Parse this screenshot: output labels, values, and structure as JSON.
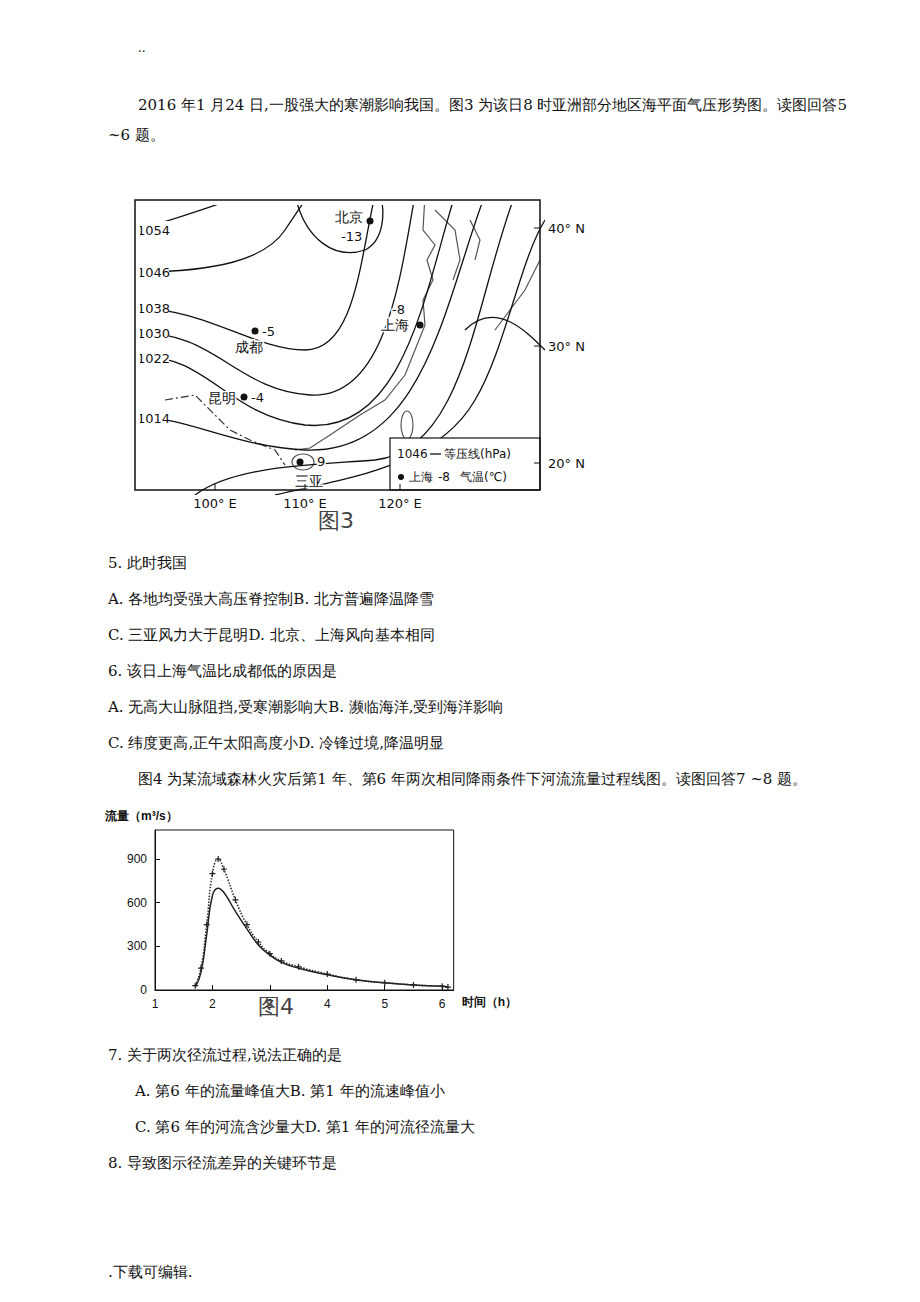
{
  "header": "..",
  "intro1": "2016 年1 月24 日,一股强大的寒潮影响我国。图3 为该日8 时亚洲部分地区海平面气压形势图。读图回答5 ~6 题。",
  "figure3": {
    "isobar_labels": [
      "1054",
      "1046",
      "1038",
      "1030",
      "1022",
      "1014"
    ],
    "cities": [
      {
        "name": "北京",
        "temp": "-13"
      },
      {
        "name": "上海",
        "temp": "-8"
      },
      {
        "name": "成都",
        "temp": "-5"
      },
      {
        "name": "昆明",
        "temp": "-4"
      },
      {
        "name": "三亚",
        "temp": "9"
      }
    ],
    "lat_labels": [
      "40° N",
      "30° N",
      "20° N"
    ],
    "lon_labels": [
      "100° E",
      "110° E",
      "120° E"
    ],
    "legend": {
      "isobar_sample": "1046",
      "isobar_text": "等压线(hPa)",
      "city_sample": "上海",
      "temp_sample": "-8",
      "temp_text": "气温(℃)"
    },
    "caption": "图3"
  },
  "questions_a": [
    {
      "stem": "5. 此时我国",
      "options": [
        "A. 各地均受强大高压脊控制B. 北方普遍降温降雪",
        "C. 三亚风力大于昆明D. 北京、上海风向基本相同"
      ]
    },
    {
      "stem": "6. 该日上海气温比成都低的原因是",
      "options": [
        "A. 无高大山脉阻挡,受寒潮影响大B. 濒临海洋,受到海洋影响",
        "C. 纬度更高,正午太阳高度小D. 冷锋过境,降温明显"
      ]
    }
  ],
  "intro2": "图4 为某流域森林火灾后第1 年、第6 年两次相同降雨条件下河流流量过程线图。读图回答7 ~8 题。",
  "chart_data": {
    "type": "line",
    "caption": "图4",
    "y_label": "流量（m³/s）",
    "x_label": "时间（h）",
    "x": [
      1.7,
      1.8,
      1.9,
      2.0,
      2.1,
      2.2,
      2.4,
      2.6,
      2.8,
      3.0,
      3.2,
      3.5,
      4.0,
      4.5,
      5.0,
      5.5,
      6.0,
      6.1
    ],
    "series": [
      {
        "color": "#222222",
        "marker": "cross",
        "line_style": "dotted",
        "values": [
          30,
          150,
          450,
          800,
          900,
          830,
          620,
          450,
          330,
          250,
          200,
          160,
          110,
          70,
          50,
          35,
          25,
          20
        ]
      },
      {
        "color": "#222222",
        "marker": "none",
        "line_style": "solid",
        "values": [
          20,
          120,
          380,
          650,
          700,
          670,
          540,
          420,
          310,
          240,
          190,
          150,
          105,
          70,
          50,
          35,
          25,
          20
        ]
      }
    ],
    "xlim": [
      1,
      6.2
    ],
    "xticks": [
      1,
      2,
      3,
      4,
      5,
      6
    ],
    "ylim": [
      0,
      1100
    ],
    "yticks": [
      0,
      300,
      600,
      900
    ],
    "grid": false
  },
  "questions_b": [
    {
      "stem": "7. 关于两次径流过程,说法正确的是",
      "options": [
        "A. 第6 年的流量峰值大B. 第1 年的流速峰值小",
        "C. 第6 年的河流含沙量大D. 第1 年的河流径流量大"
      ]
    },
    {
      "stem": "8. 导致图示径流差异的关键环节是",
      "options": []
    }
  ],
  "footer": ".下载可编辑."
}
